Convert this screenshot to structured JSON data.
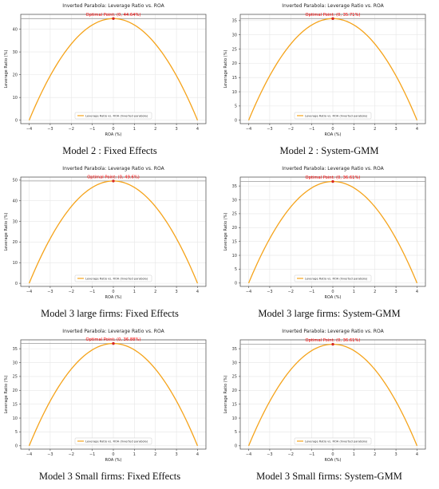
{
  "figure": {
    "colors": {
      "curve": "#f5a31a",
      "optimal_marker": "#d62728",
      "optimal_text": "#ff0000",
      "grid": "#e6e6e6",
      "axis": "#444444"
    },
    "panels": [
      {
        "caption": "Model 2 : Fixed Effects"
      },
      {
        "caption": "Model 2 : System-GMM"
      },
      {
        "caption": "Model 3 large firms: Fixed Effects"
      },
      {
        "caption": "Model 3 large firms: System-GMM"
      },
      {
        "caption": "Model 3 Small firms: Fixed Effects"
      },
      {
        "caption": "Model 3 Small firms: System-GMM"
      }
    ]
  },
  "chart_data": [
    {
      "type": "line",
      "title": "Inverted Parabola: Leverage Ratio vs. ROA",
      "xlabel": "ROA (%)",
      "ylabel": "Leverage Ratio (%)",
      "xlim": [
        -4.4,
        4.4
      ],
      "ylim": [
        -1.5,
        46.5
      ],
      "xticks": [
        -4,
        -3,
        -2,
        -1,
        0,
        1,
        2,
        3,
        4
      ],
      "yticks": [
        0,
        10,
        20,
        30,
        40
      ],
      "series": [
        {
          "name": "Leverage Ratio vs. ROA (Inverted parabola)",
          "x_range": [
            -4,
            4
          ],
          "vertex": [
            0,
            44.64
          ],
          "y_at_ends": 0
        }
      ],
      "annotation": {
        "text": "Optimal Point: (0, 44.64%)",
        "x": 0,
        "y": 44.64
      },
      "reference_line": 44.64,
      "grid": true,
      "legend_position": "bottom-center"
    },
    {
      "type": "line",
      "title": "Inverted Parabola: Leverage Ratio vs. ROA",
      "xlabel": "ROA (%)",
      "ylabel": "Leverage Ratio (%)",
      "xlim": [
        -4.4,
        4.4
      ],
      "ylim": [
        -1.2,
        37.2
      ],
      "xticks": [
        -4,
        -3,
        -2,
        -1,
        0,
        1,
        2,
        3,
        4
      ],
      "yticks": [
        0,
        5,
        10,
        15,
        20,
        25,
        30,
        35
      ],
      "series": [
        {
          "name": "Leverage Ratio vs. ROA (Inverted parabola)",
          "x_range": [
            -4,
            4
          ],
          "vertex": [
            0,
            35.71
          ],
          "y_at_ends": 0
        }
      ],
      "annotation": {
        "text": "Optimal Point: (0, 35.71%)",
        "x": 0,
        "y": 35.71
      },
      "reference_line": 35.71,
      "grid": true,
      "legend_position": "bottom-center"
    },
    {
      "type": "line",
      "title": "Inverted Parabola: Leverage Ratio vs. ROA",
      "xlabel": "ROA (%)",
      "ylabel": "Leverage Ratio (%)",
      "xlim": [
        -4.4,
        4.4
      ],
      "ylim": [
        -1.5,
        51.5
      ],
      "xticks": [
        -4,
        -3,
        -2,
        -1,
        0,
        1,
        2,
        3,
        4
      ],
      "yticks": [
        0,
        10,
        20,
        30,
        40,
        50
      ],
      "series": [
        {
          "name": "Leverage Ratio vs. ROA (Inverted parabola)",
          "x_range": [
            -4,
            4
          ],
          "vertex": [
            0,
            49.6
          ],
          "y_at_ends": 0
        }
      ],
      "annotation": {
        "text": "Optimal Point: (0, 49.6%)",
        "x": 0,
        "y": 49.6
      },
      "reference_line": 49.6,
      "grid": true,
      "legend_position": "bottom-center"
    },
    {
      "type": "line",
      "title": "Inverted Parabola: Leverage Ratio vs. ROA",
      "xlabel": "ROA (%)",
      "ylabel": "Leverage Ratio (%)",
      "xlim": [
        -4.4,
        4.4
      ],
      "ylim": [
        -1.2,
        38.2
      ],
      "xticks": [
        -4,
        -3,
        -2,
        -1,
        0,
        1,
        2,
        3,
        4
      ],
      "yticks": [
        0,
        5,
        10,
        15,
        20,
        25,
        30,
        35
      ],
      "series": [
        {
          "name": "Leverage Ratio vs. ROA (Inverted parabola)",
          "x_range": [
            -4,
            4
          ],
          "vertex": [
            0,
            36.61
          ],
          "y_at_ends": 0
        }
      ],
      "annotation": {
        "text": "Optimal Point: (0, 36.61%)",
        "x": 0,
        "y": 36.61
      },
      "reference_line": 36.61,
      "grid": true,
      "legend_position": "bottom-center"
    },
    {
      "type": "line",
      "title": "Inverted Parabola: Leverage Ratio vs. ROA",
      "xlabel": "ROA (%)",
      "ylabel": "Leverage Ratio (%)",
      "xlim": [
        -4.4,
        4.4
      ],
      "ylim": [
        -1.2,
        38.2
      ],
      "xticks": [
        -4,
        -3,
        -2,
        -1,
        0,
        1,
        2,
        3,
        4
      ],
      "yticks": [
        0,
        5,
        10,
        15,
        20,
        25,
        30,
        35
      ],
      "series": [
        {
          "name": "Leverage Ratio vs. ROA (Inverted parabola)",
          "x_range": [
            -4,
            4
          ],
          "vertex": [
            0,
            36.88
          ],
          "y_at_ends": 0
        }
      ],
      "annotation": {
        "text": "Optimal Point: (0, 36.88%)",
        "x": 0,
        "y": 36.88
      },
      "reference_line": 36.88,
      "grid": true,
      "legend_position": "bottom-center"
    },
    {
      "type": "line",
      "title": "Inverted Parabola: Leverage Ratio vs. ROA",
      "xlabel": "ROA (%)",
      "ylabel": "Leverage Ratio (%)",
      "xlim": [
        -4.4,
        4.4
      ],
      "ylim": [
        -1.2,
        38.2
      ],
      "xticks": [
        -4,
        -3,
        -2,
        -1,
        0,
        1,
        2,
        3,
        4
      ],
      "yticks": [
        0,
        5,
        10,
        15,
        20,
        25,
        30,
        35
      ],
      "series": [
        {
          "name": "Leverage Ratio vs. ROA (Inverted parabola)",
          "x_range": [
            -4,
            4
          ],
          "vertex": [
            0,
            36.61
          ],
          "y_at_ends": 0
        }
      ],
      "annotation": {
        "text": "Optimal Point: (0, 36.61%)",
        "x": 0,
        "y": 36.61
      },
      "reference_line": 36.61,
      "grid": true,
      "legend_position": "bottom-center"
    }
  ]
}
